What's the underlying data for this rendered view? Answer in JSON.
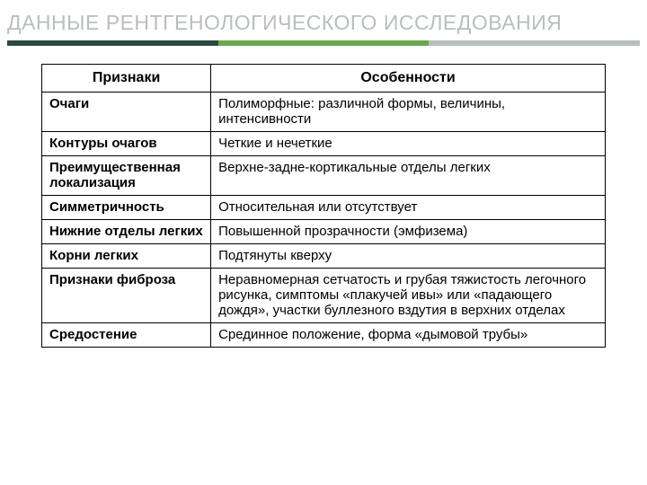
{
  "title": {
    "text": "ДАННЫЕ РЕНТГЕНОЛОГИЧЕСКОГО ИССЛЕДОВАНИЯ",
    "color": "#b9bec1",
    "fontsize": 23,
    "fontweight": "400"
  },
  "divider": {
    "segments": [
      "#2d4a3e",
      "#6aa84f",
      "#b9bec1"
    ],
    "height": 6
  },
  "table": {
    "columns": [
      {
        "label": "Признаки",
        "width": "30%"
      },
      {
        "label": "Особенности",
        "width": "70%"
      }
    ],
    "header_fontsize": 16,
    "cell_fontsize": 15,
    "border_color": "#000000",
    "rows": [
      {
        "feature": "Очаги",
        "detail": "Полиморфные: различной формы, величины, интенсивности"
      },
      {
        "feature": "Контуры очагов",
        "detail": "Четкие и нечеткие"
      },
      {
        "feature": "Преимущественная локализация",
        "detail": "Верхне-задне-кортикальные отделы легких"
      },
      {
        "feature": "Симметричность",
        "detail": "Относительная или отсутствует"
      },
      {
        "feature": "Нижние отделы легких",
        "detail": "Повышенной прозрачности (эмфизема)"
      },
      {
        "feature": "Корни легких",
        "detail": "Подтянуты кверху"
      },
      {
        "feature": "Признаки фиброза",
        "detail": "Неравномерная сетчатость и грубая тяжистость легочного рисунка, симптомы «плакучей ивы» или «падающего дождя», участки буллезного вздутия в верхних отделах"
      },
      {
        "feature": "Средостение",
        "detail": "Срединное положение, форма «дымовой трубы»"
      }
    ]
  }
}
